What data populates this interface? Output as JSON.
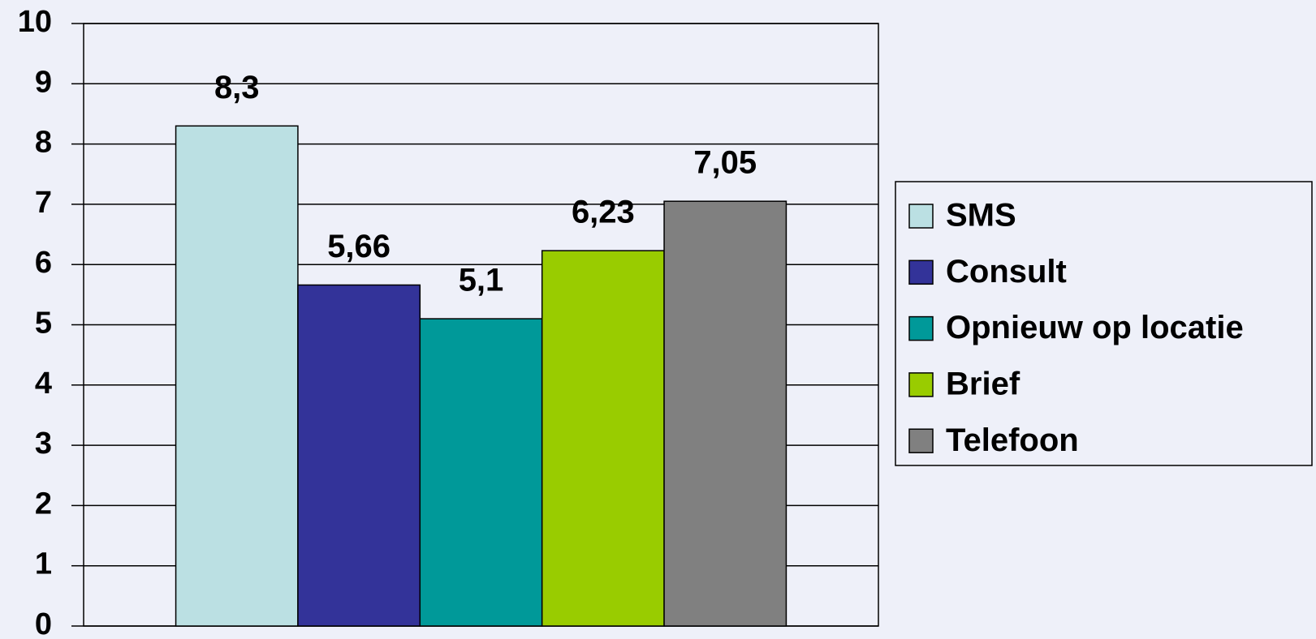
{
  "chart_data": {
    "type": "bar",
    "categories": [
      null
    ],
    "series": [
      {
        "name": "SMS",
        "color": "#bbe0e3",
        "values": [
          8.3
        ],
        "value_labels": [
          "8,3"
        ]
      },
      {
        "name": "Consult",
        "color": "#333399",
        "values": [
          5.66
        ],
        "value_labels": [
          "5,66"
        ]
      },
      {
        "name": "Opnieuw op locatie",
        "color": "#009999",
        "values": [
          5.1
        ],
        "value_labels": [
          "5,1"
        ]
      },
      {
        "name": "Brief",
        "color": "#99cc00",
        "values": [
          6.23
        ],
        "value_labels": [
          "6,23"
        ]
      },
      {
        "name": "Telefoon",
        "color": "#808080",
        "values": [
          7.05
        ],
        "value_labels": [
          "7,05"
        ]
      }
    ],
    "ylim": [
      0,
      10
    ],
    "yticks": [
      0,
      1,
      2,
      3,
      4,
      5,
      6,
      7,
      8,
      9,
      10
    ],
    "grid": true,
    "legend": "right"
  }
}
